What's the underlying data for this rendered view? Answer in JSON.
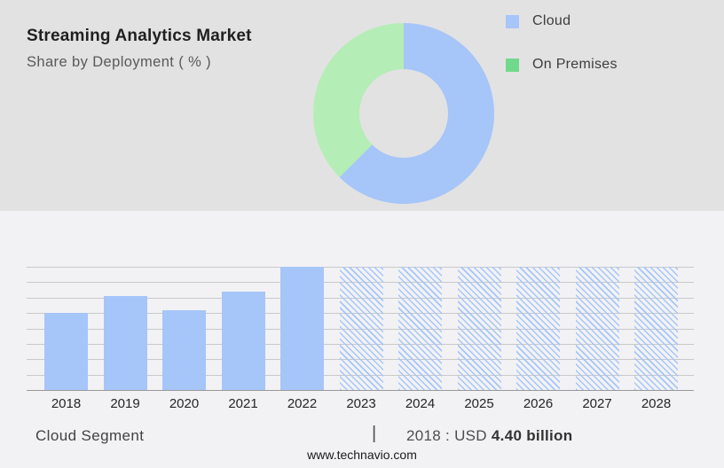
{
  "header": {
    "title": "Streaming Analytics Market",
    "subtitle": "Share by Deployment ( % )"
  },
  "legend": {
    "items": [
      {
        "label": "Cloud",
        "color": "#a6c5f9"
      },
      {
        "label": "On Premises",
        "color": "#71d98c"
      }
    ]
  },
  "colors": {
    "header_bg": "#e2e2e2",
    "body_bg": "#f2f2f4",
    "bar_blue": "#a6c5f9",
    "donut_blue": "#a6c5f9",
    "donut_green": "#b5edb6",
    "gridline": "#c9c9c9",
    "axis": "#9a9a9a"
  },
  "chart_data": [
    {
      "type": "pie",
      "subtype": "donut",
      "title": "Share by Deployment ( % )",
      "labels": [
        "Cloud",
        "On Premises"
      ],
      "values_pct": [
        62.5,
        37.5
      ],
      "colors": [
        "#a6c5f9",
        "#b5edb6"
      ],
      "start_angle_deg": 0,
      "direction": "clockwise",
      "legend_position": "right",
      "hole_ratio": 0.49
    },
    {
      "type": "bar",
      "title": "Cloud Segment size by year (y-axis unlabeled index)",
      "categories": [
        "2018",
        "2019",
        "2020",
        "2021",
        "2022",
        "2023",
        "2024",
        "2025",
        "2026",
        "2027",
        "2028"
      ],
      "values": [
        5.0,
        6.1,
        5.2,
        6.4,
        8.0,
        8.0,
        8.0,
        8.0,
        8.0,
        8.0,
        8.0
      ],
      "ylim": [
        0,
        8
      ],
      "gridline_intervals": 8,
      "grid": true,
      "bar_color": "#a6c5f9",
      "forecast_start_category": "2023",
      "forecast_style": "diagonal-hatch",
      "annotation": "2018 : USD 4.40 billion"
    }
  ],
  "footer": {
    "segment_label": "Cloud Segment",
    "separator": "|",
    "value_text": "2018 : USD",
    "value_bold": "4.40 billion",
    "website": "www.technavio.com"
  }
}
